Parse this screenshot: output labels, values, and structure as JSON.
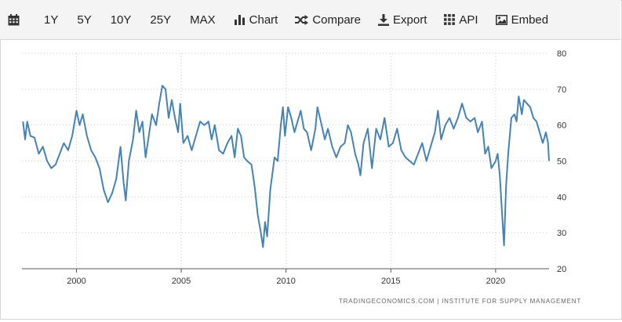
{
  "toolbar": {
    "calendar_icon": "calendar-icon",
    "ranges": [
      "1Y",
      "5Y",
      "10Y",
      "25Y",
      "MAX"
    ],
    "chart_label": "Chart",
    "compare_label": "Compare",
    "export_label": "Export",
    "api_label": "API",
    "embed_label": "Embed"
  },
  "source": "TRADINGECONOMICS.COM  |  INSTITUTE FOR SUPPLY MANAGEMENT",
  "colors": {
    "line": "#4682b4",
    "grid": "#c8c8c8",
    "toolbar_bg": "#f4f4f4"
  },
  "chart_data": {
    "type": "line",
    "title": "",
    "xlabel": "",
    "ylabel": "",
    "xlim": [
      1997.4,
      2022.55
    ],
    "ylim": [
      20,
      80
    ],
    "y_ticks": [
      20,
      30,
      40,
      50,
      60,
      70,
      80
    ],
    "x_ticks": [
      2000,
      2005,
      2010,
      2015,
      2020
    ],
    "grid": "dotted horizontal and vertical",
    "series": [
      {
        "values": [
          [
            1997.45,
            61.0
          ],
          [
            1997.55,
            56.0
          ],
          [
            1997.65,
            61.0
          ],
          [
            1997.8,
            57.0
          ],
          [
            1998.0,
            56.5
          ],
          [
            1998.2,
            52.0
          ],
          [
            1998.4,
            54.0
          ],
          [
            1998.6,
            50.0
          ],
          [
            1998.8,
            48.0
          ],
          [
            1999.0,
            49.0
          ],
          [
            1999.2,
            52.0
          ],
          [
            1999.4,
            55.0
          ],
          [
            1999.6,
            53.0
          ],
          [
            1999.8,
            57.0
          ],
          [
            2000.0,
            64.0
          ],
          [
            2000.15,
            60.0
          ],
          [
            2000.3,
            63.0
          ],
          [
            2000.5,
            57.0
          ],
          [
            2000.7,
            53.0
          ],
          [
            2000.9,
            51.0
          ],
          [
            2001.1,
            48.0
          ],
          [
            2001.3,
            42.0
          ],
          [
            2001.5,
            38.5
          ],
          [
            2001.7,
            41.0
          ],
          [
            2001.9,
            45.0
          ],
          [
            2002.1,
            54.0
          ],
          [
            2002.25,
            44.0
          ],
          [
            2002.35,
            39.0
          ],
          [
            2002.5,
            50.0
          ],
          [
            2002.7,
            56.0
          ],
          [
            2002.85,
            64.0
          ],
          [
            2003.0,
            58.0
          ],
          [
            2003.15,
            61.0
          ],
          [
            2003.3,
            51.0
          ],
          [
            2003.45,
            57.0
          ],
          [
            2003.6,
            63.0
          ],
          [
            2003.8,
            60.0
          ],
          [
            2003.95,
            66.0
          ],
          [
            2004.1,
            71.0
          ],
          [
            2004.25,
            70.0
          ],
          [
            2004.4,
            62.0
          ],
          [
            2004.55,
            67.0
          ],
          [
            2004.7,
            62.0
          ],
          [
            2004.85,
            58.0
          ],
          [
            2004.95,
            66.0
          ],
          [
            2005.1,
            55.0
          ],
          [
            2005.3,
            57.0
          ],
          [
            2005.5,
            53.0
          ],
          [
            2005.7,
            57.0
          ],
          [
            2005.9,
            61.0
          ],
          [
            2006.1,
            60.0
          ],
          [
            2006.3,
            61.0
          ],
          [
            2006.45,
            56.0
          ],
          [
            2006.6,
            60.0
          ],
          [
            2006.8,
            53.0
          ],
          [
            2007.0,
            52.0
          ],
          [
            2007.2,
            55.0
          ],
          [
            2007.4,
            57.0
          ],
          [
            2007.55,
            51.0
          ],
          [
            2007.7,
            59.0
          ],
          [
            2007.85,
            57.0
          ],
          [
            2008.0,
            51.0
          ],
          [
            2008.15,
            50.0
          ],
          [
            2008.35,
            49.0
          ],
          [
            2008.5,
            43.0
          ],
          [
            2008.65,
            35.0
          ],
          [
            2008.8,
            30.0
          ],
          [
            2008.9,
            26.0
          ],
          [
            2009.0,
            33.0
          ],
          [
            2009.1,
            29.0
          ],
          [
            2009.25,
            42.0
          ],
          [
            2009.45,
            51.0
          ],
          [
            2009.6,
            50.0
          ],
          [
            2009.75,
            60.0
          ],
          [
            2009.85,
            65.0
          ],
          [
            2009.95,
            57.0
          ],
          [
            2010.1,
            65.0
          ],
          [
            2010.25,
            62.0
          ],
          [
            2010.4,
            58.0
          ],
          [
            2010.55,
            61.0
          ],
          [
            2010.7,
            64.0
          ],
          [
            2010.85,
            59.0
          ],
          [
            2011.0,
            58.0
          ],
          [
            2011.2,
            53.0
          ],
          [
            2011.4,
            59.0
          ],
          [
            2011.5,
            65.0
          ],
          [
            2011.7,
            60.0
          ],
          [
            2011.85,
            56.0
          ],
          [
            2012.0,
            59.0
          ],
          [
            2012.2,
            54.0
          ],
          [
            2012.4,
            51.0
          ],
          [
            2012.6,
            54.0
          ],
          [
            2012.8,
            55.0
          ],
          [
            2012.95,
            60.0
          ],
          [
            2013.1,
            58.0
          ],
          [
            2013.3,
            52.0
          ],
          [
            2013.45,
            49.0
          ],
          [
            2013.55,
            46.0
          ],
          [
            2013.7,
            55.0
          ],
          [
            2013.9,
            59.0
          ],
          [
            2014.1,
            48.0
          ],
          [
            2014.3,
            59.0
          ],
          [
            2014.5,
            56.0
          ],
          [
            2014.7,
            62.0
          ],
          [
            2014.9,
            54.0
          ],
          [
            2015.1,
            55.0
          ],
          [
            2015.3,
            59.0
          ],
          [
            2015.5,
            53.0
          ],
          [
            2015.7,
            51.0
          ],
          [
            2015.9,
            50.0
          ],
          [
            2016.1,
            49.0
          ],
          [
            2016.3,
            52.0
          ],
          [
            2016.5,
            55.0
          ],
          [
            2016.7,
            50.0
          ],
          [
            2016.9,
            54.0
          ],
          [
            2017.1,
            58.0
          ],
          [
            2017.25,
            64.0
          ],
          [
            2017.4,
            56.0
          ],
          [
            2017.6,
            60.0
          ],
          [
            2017.8,
            62.0
          ],
          [
            2018.0,
            59.0
          ],
          [
            2018.2,
            62.0
          ],
          [
            2018.4,
            66.0
          ],
          [
            2018.6,
            62.0
          ],
          [
            2018.8,
            61.0
          ],
          [
            2019.0,
            62.0
          ],
          [
            2019.15,
            58.0
          ],
          [
            2019.35,
            61.0
          ],
          [
            2019.5,
            52.0
          ],
          [
            2019.65,
            54.0
          ],
          [
            2019.8,
            48.0
          ],
          [
            2020.0,
            50.0
          ],
          [
            2020.1,
            52.0
          ],
          [
            2020.2,
            46.0
          ],
          [
            2020.3,
            36.0
          ],
          [
            2020.4,
            26.5
          ],
          [
            2020.5,
            43.0
          ],
          [
            2020.6,
            52.0
          ],
          [
            2020.75,
            62.0
          ],
          [
            2020.9,
            63.0
          ],
          [
            2021.0,
            61.0
          ],
          [
            2021.1,
            68.0
          ],
          [
            2021.25,
            63.0
          ],
          [
            2021.35,
            67.0
          ],
          [
            2021.5,
            66.0
          ],
          [
            2021.65,
            65.0
          ],
          [
            2021.8,
            62.0
          ],
          [
            2021.95,
            61.0
          ],
          [
            2022.1,
            58.0
          ],
          [
            2022.25,
            55.0
          ],
          [
            2022.4,
            58.0
          ],
          [
            2022.5,
            55.0
          ],
          [
            2022.55,
            50.0
          ]
        ]
      }
    ]
  }
}
